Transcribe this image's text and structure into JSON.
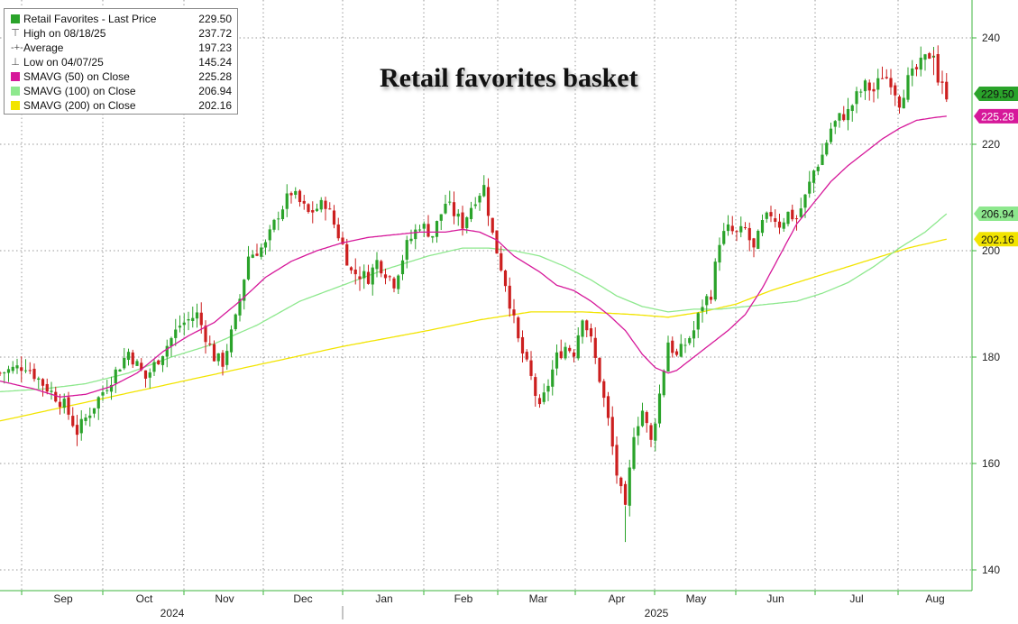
{
  "chart_data": {
    "type": "candlestick",
    "title": "Retail favorites basket",
    "ylim": [
      137,
      250
    ],
    "y_ticks": [
      140,
      160,
      180,
      200,
      220,
      240
    ],
    "x_month_labels": [
      "Sep",
      "Oct",
      "Nov",
      "Dec",
      "Jan",
      "Feb",
      "Mar",
      "Apr",
      "May",
      "Jun",
      "Jul",
      "Aug"
    ],
    "x_year_labels": [
      "2024",
      "2025"
    ],
    "legend": {
      "main": {
        "label": "Retail Favorites - Last Price",
        "value": "229.50",
        "color": "#2aa32a"
      },
      "high": {
        "label": "High on 08/18/25",
        "value": "237.72"
      },
      "average": {
        "label": "Average",
        "value": "197.23"
      },
      "low": {
        "label": "Low on 04/07/25",
        "value": "145.24"
      },
      "sma50": {
        "label": "SMAVG (50)  on Close",
        "value": "225.28",
        "color": "#d6189a"
      },
      "sma100": {
        "label": "SMAVG (100)  on Close",
        "value": "206.94",
        "color": "#8ee88e"
      },
      "sma200": {
        "label": "SMAVG (200)  on Close",
        "value": "202.16",
        "color": "#f2e400"
      }
    },
    "axis_badges": [
      {
        "value": 229.5,
        "text": "229.50",
        "bg": "#2aa32a",
        "fg": "#111111"
      },
      {
        "value": 225.28,
        "text": "225.28",
        "bg": "#d6189a",
        "fg": "#ffffff"
      },
      {
        "value": 206.94,
        "text": "206.94",
        "bg": "#8ee88e",
        "fg": "#111111"
      },
      {
        "value": 202.16,
        "text": "202.16",
        "bg": "#f2e400",
        "fg": "#111111"
      }
    ],
    "price_path": [
      [
        0,
        177
      ],
      [
        6,
        178.5
      ],
      [
        10,
        175
      ],
      [
        15,
        171
      ],
      [
        18,
        166
      ],
      [
        22,
        171
      ],
      [
        26,
        176
      ],
      [
        30,
        181
      ],
      [
        34,
        176
      ],
      [
        38,
        181
      ],
      [
        42,
        186
      ],
      [
        46,
        188
      ],
      [
        50,
        180
      ],
      [
        52,
        179
      ],
      [
        55,
        187
      ],
      [
        58,
        199
      ],
      [
        62,
        201
      ],
      [
        65,
        207
      ],
      [
        68,
        211
      ],
      [
        72,
        207
      ],
      [
        76,
        209
      ],
      [
        80,
        201
      ],
      [
        82,
        196
      ],
      [
        86,
        195
      ],
      [
        88,
        198
      ],
      [
        92,
        194
      ],
      [
        95,
        201
      ],
      [
        98,
        205
      ],
      [
        101,
        203
      ],
      [
        104,
        209
      ],
      [
        108,
        205
      ],
      [
        111,
        210
      ],
      [
        113,
        212
      ],
      [
        115,
        203
      ],
      [
        118,
        194
      ],
      [
        121,
        183
      ],
      [
        124,
        176
      ],
      [
        126,
        170
      ],
      [
        130,
        180
      ],
      [
        132,
        182
      ],
      [
        134,
        181
      ],
      [
        136,
        188
      ],
      [
        138,
        183
      ],
      [
        140,
        176
      ],
      [
        142,
        168
      ],
      [
        144,
        158
      ],
      [
        146,
        151
      ],
      [
        148,
        166
      ],
      [
        150,
        170
      ],
      [
        152,
        164
      ],
      [
        154,
        173
      ],
      [
        156,
        183
      ],
      [
        158,
        180
      ],
      [
        162,
        185
      ],
      [
        164,
        190
      ],
      [
        166,
        192
      ],
      [
        168,
        202
      ],
      [
        170,
        204
      ],
      [
        172,
        203
      ],
      [
        174,
        204
      ],
      [
        176,
        200
      ],
      [
        178,
        205
      ],
      [
        180,
        207
      ],
      [
        182,
        205
      ],
      [
        184,
        207
      ],
      [
        186,
        206
      ],
      [
        188,
        210
      ],
      [
        190,
        215
      ],
      [
        192,
        218
      ],
      [
        194,
        223
      ],
      [
        196,
        225
      ],
      [
        198,
        226
      ],
      [
        200,
        229
      ],
      [
        202,
        231
      ],
      [
        204,
        230
      ],
      [
        206,
        233
      ],
      [
        208,
        232
      ],
      [
        210,
        228
      ],
      [
        212,
        232
      ],
      [
        214,
        234
      ],
      [
        216,
        236
      ],
      [
        218,
        237.5
      ],
      [
        219,
        232
      ],
      [
        221,
        229.5
      ]
    ],
    "sma50_path": [
      [
        0,
        175.5
      ],
      [
        8,
        174
      ],
      [
        14,
        172.5
      ],
      [
        20,
        173
      ],
      [
        26,
        174.5
      ],
      [
        32,
        177
      ],
      [
        38,
        181
      ],
      [
        44,
        184
      ],
      [
        50,
        186.5
      ],
      [
        56,
        190.5
      ],
      [
        62,
        195
      ],
      [
        68,
        198
      ],
      [
        74,
        200
      ],
      [
        80,
        201.5
      ],
      [
        86,
        202.5
      ],
      [
        92,
        203
      ],
      [
        98,
        203.5
      ],
      [
        104,
        203.5
      ],
      [
        108,
        204
      ],
      [
        112,
        203.5
      ],
      [
        116,
        202
      ],
      [
        120,
        199
      ],
      [
        126,
        196
      ],
      [
        130,
        193.5
      ],
      [
        134,
        192.5
      ],
      [
        138,
        190.5
      ],
      [
        142,
        188
      ],
      [
        146,
        185
      ],
      [
        150,
        180.5
      ],
      [
        153,
        178
      ],
      [
        156,
        177
      ],
      [
        158,
        177.5
      ],
      [
        162,
        180
      ],
      [
        166,
        182.5
      ],
      [
        170,
        185
      ],
      [
        174,
        188
      ],
      [
        178,
        193
      ],
      [
        182,
        199
      ],
      [
        186,
        205
      ],
      [
        190,
        209
      ],
      [
        194,
        213
      ],
      [
        198,
        216
      ],
      [
        202,
        218.5
      ],
      [
        206,
        221
      ],
      [
        210,
        223
      ],
      [
        214,
        224.5
      ],
      [
        218,
        225
      ],
      [
        221,
        225.28
      ]
    ],
    "sma100_path": [
      [
        0,
        173.5
      ],
      [
        10,
        174
      ],
      [
        20,
        175
      ],
      [
        30,
        177
      ],
      [
        40,
        180
      ],
      [
        50,
        182.5
      ],
      [
        60,
        186
      ],
      [
        70,
        190.5
      ],
      [
        80,
        193.5
      ],
      [
        90,
        196.5
      ],
      [
        100,
        199
      ],
      [
        108,
        200.5
      ],
      [
        114,
        200.5
      ],
      [
        120,
        200
      ],
      [
        126,
        199
      ],
      [
        132,
        197
      ],
      [
        138,
        194.5
      ],
      [
        144,
        191.5
      ],
      [
        150,
        189.5
      ],
      [
        156,
        188.5
      ],
      [
        162,
        189
      ],
      [
        168,
        189
      ],
      [
        174,
        189.5
      ],
      [
        180,
        190
      ],
      [
        186,
        190.5
      ],
      [
        192,
        192
      ],
      [
        198,
        194
      ],
      [
        204,
        197
      ],
      [
        210,
        200.5
      ],
      [
        216,
        203.5
      ],
      [
        221,
        206.94
      ]
    ],
    "sma200_path": [
      [
        0,
        168
      ],
      [
        20,
        171.5
      ],
      [
        40,
        175
      ],
      [
        60,
        178.5
      ],
      [
        80,
        182
      ],
      [
        100,
        185
      ],
      [
        112,
        187
      ],
      [
        124,
        188.5
      ],
      [
        136,
        188.5
      ],
      [
        148,
        188
      ],
      [
        156,
        187.5
      ],
      [
        164,
        188.5
      ],
      [
        172,
        190
      ],
      [
        180,
        192.5
      ],
      [
        188,
        194.5
      ],
      [
        196,
        196.5
      ],
      [
        204,
        198.5
      ],
      [
        212,
        200.5
      ],
      [
        221,
        202.16
      ]
    ]
  }
}
